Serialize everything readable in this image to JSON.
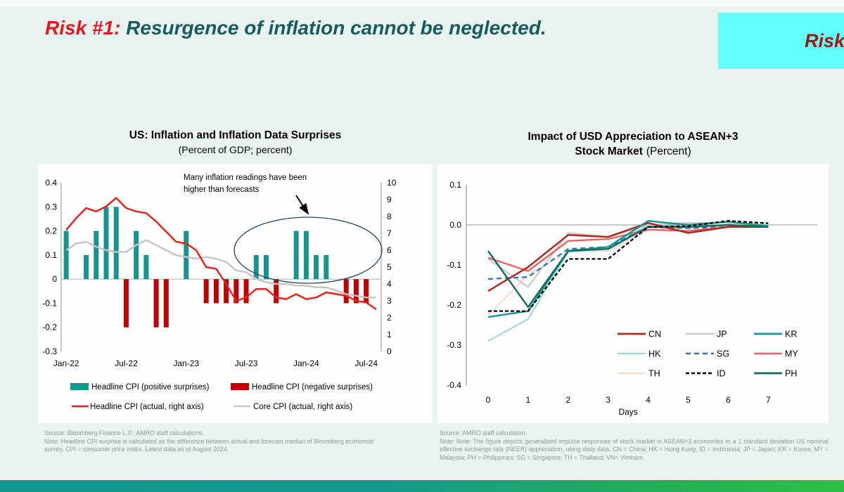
{
  "header": {
    "title_prefix": "Risk #1:",
    "title_rest": " Resurgence of inflation cannot be neglected.",
    "corner_label": "Risk"
  },
  "colors": {
    "background": "#e9f3f0",
    "title_red": "#e8171f",
    "title_teal": "#175a60",
    "corner_bg": "#63ffff",
    "corner_text": "#aa1414",
    "footer_teal": "#15988f",
    "footer_green": "#2eb44a"
  },
  "chart_data": [
    {
      "type": "bar",
      "subtype": "combo_bar_line",
      "title": "US: Inflation and Inflation Data Surprises",
      "subtitle": "(Percent of GDP; percent)",
      "x_months": [
        "Jan-22",
        "Feb-22",
        "Mar-22",
        "Apr-22",
        "May-22",
        "Jun-22",
        "Jul-22",
        "Aug-22",
        "Sep-22",
        "Oct-22",
        "Nov-22",
        "Dec-22",
        "Jan-23",
        "Feb-23",
        "Mar-23",
        "Apr-23",
        "May-23",
        "Jun-23",
        "Jul-23",
        "Aug-23",
        "Sep-23",
        "Oct-23",
        "Nov-23",
        "Dec-23",
        "Jan-24",
        "Feb-24",
        "Mar-24",
        "Apr-24",
        "May-24",
        "Jun-24",
        "Jul-24",
        "Aug-24"
      ],
      "x_tick_labels": [
        "Jan-22",
        "Jul-22",
        "Jan-23",
        "Jul-23",
        "Jan-24",
        "Jul-24"
      ],
      "x_tick_month_index": [
        0,
        6,
        12,
        18,
        24,
        30
      ],
      "left_axis": {
        "min": -0.3,
        "max": 0.4,
        "step": 0.1
      },
      "right_axis": {
        "min": 0,
        "max": 10,
        "step": 1
      },
      "bars": {
        "name_positive": "Headline CPI (positive surprises)",
        "color_positive": "#17948e",
        "name_negative": "Headline CPI (negative surprises)",
        "color_negative": "#c00000",
        "values": [
          0.2,
          0,
          0.1,
          0.2,
          0.3,
          0.3,
          -0.2,
          0.2,
          0.1,
          -0.2,
          -0.2,
          0,
          0.2,
          0,
          -0.1,
          -0.1,
          -0.1,
          -0.1,
          -0.1,
          0.1,
          0.1,
          -0.1,
          0,
          0.2,
          0.2,
          0.1,
          0.1,
          0,
          -0.1,
          -0.1,
          -0.1,
          0
        ]
      },
      "lines": [
        {
          "name": "Headline CPI (actual, right axis)",
          "color": "#e6231e",
          "values": [
            7.2,
            7.9,
            8.5,
            8.3,
            8.6,
            9.1,
            8.5,
            8.3,
            8.2,
            7.7,
            7.1,
            6.5,
            6.4,
            6.0,
            5.0,
            4.9,
            4.0,
            3.0,
            3.2,
            3.7,
            3.7,
            3.2,
            3.1,
            3.4,
            3.1,
            3.2,
            3.5,
            3.4,
            3.3,
            3.0,
            2.9,
            2.5
          ]
        },
        {
          "name": "Core CPI (actual, right axis)",
          "color": "#c5c5c5",
          "values": [
            6.0,
            6.4,
            6.5,
            6.2,
            6.0,
            5.9,
            5.9,
            6.3,
            6.6,
            6.3,
            6.0,
            5.7,
            5.6,
            5.5,
            5.6,
            5.5,
            5.3,
            4.8,
            4.7,
            4.3,
            4.1,
            4.0,
            4.0,
            3.9,
            3.9,
            3.8,
            3.8,
            3.6,
            3.4,
            3.3,
            3.2,
            3.2
          ]
        }
      ],
      "annotation": {
        "line1": "Many inflation readings have been",
        "line2": "higher than forecasts"
      },
      "source": "Source: Bloomberg Finance L.P.; AMRO staff calculations.",
      "note": "Note: Headline CPI surprise is calculated as the difference between actual and forecast median of Bloomberg economist survey. CPI = consumer price index. Latest data as of August 2024."
    },
    {
      "type": "line",
      "title_line1": "Impact of USD Appreciation to ASEAN+3",
      "title_line2_bold": "Stock Market",
      "title_line2_normal": "(Percent)",
      "x": [
        0,
        1,
        2,
        3,
        4,
        5,
        6,
        7
      ],
      "xlabel": "Days",
      "ylim": [
        -0.4,
        0.1
      ],
      "ytick_step": 0.1,
      "grid": "zero-line-only",
      "series": [
        {
          "name": "CN",
          "color": "#b02a21",
          "dash": null,
          "width": 2.5,
          "values": [
            -0.165,
            -0.105,
            -0.025,
            -0.03,
            0.005,
            -0.02,
            -0.005,
            -0.005
          ]
        },
        {
          "name": "JP",
          "color": "#c9c9c9",
          "dash": null,
          "width": 2.2,
          "values": [
            -0.085,
            -0.155,
            -0.02,
            -0.03,
            0.0,
            0.005,
            0.005,
            0.0
          ]
        },
        {
          "name": "KR",
          "color": "#15968f",
          "dash": null,
          "width": 2.4,
          "values": [
            -0.23,
            -0.215,
            -0.065,
            -0.055,
            0.01,
            0.0,
            0.008,
            -0.003
          ]
        },
        {
          "name": "HK",
          "color": "#9cdbe0",
          "dash": null,
          "width": 2.2,
          "values": [
            -0.29,
            -0.235,
            -0.068,
            -0.055,
            0.0,
            -0.005,
            0.0,
            -0.005
          ]
        },
        {
          "name": "SG",
          "color": "#2e75b6",
          "dash": "7,5",
          "width": 2.3,
          "values": [
            -0.135,
            -0.13,
            -0.06,
            -0.055,
            -0.005,
            -0.008,
            -0.005,
            -0.005
          ]
        },
        {
          "name": "MY",
          "color": "#ec5f5f",
          "dash": null,
          "width": 2.3,
          "values": [
            -0.082,
            -0.115,
            -0.04,
            -0.035,
            -0.012,
            -0.015,
            -0.005,
            -0.005
          ]
        },
        {
          "name": "TH",
          "color": "#f6dcd0",
          "dash": null,
          "width": 2.2,
          "values": [
            -0.225,
            -0.125,
            -0.067,
            -0.065,
            -0.012,
            -0.008,
            -0.002,
            -0.005
          ]
        },
        {
          "name": "ID",
          "color": "#000000",
          "dash": "5,3",
          "width": 2.3,
          "values": [
            -0.215,
            -0.215,
            -0.085,
            -0.085,
            -0.005,
            -0.003,
            0.01,
            0.004
          ]
        },
        {
          "name": "PH",
          "color": "#0e6a5f",
          "dash": null,
          "width": 2.4,
          "values": [
            -0.065,
            -0.205,
            -0.065,
            -0.06,
            -0.005,
            -0.005,
            0.0,
            -0.005
          ]
        }
      ],
      "draw_order": [
        "TH",
        "HK",
        "JP",
        "SG",
        "MY",
        "CN",
        "KR",
        "PH",
        "ID"
      ],
      "legend_rows": [
        [
          "CN",
          "JP",
          "KR"
        ],
        [
          "HK",
          "SG",
          "MY"
        ],
        [
          "TH",
          "ID",
          "PH"
        ]
      ],
      "legend_position": "inside-bottom-right",
      "source": "Source: AMRO staff calculation.",
      "note": "Note: Note: The figure depicts generalized impulse responses of stock market in ASEAN+3 economies to a 1 standard deviation US nominal effective exchange rate (NEER) appreciation, using daily data. CN = China; HK = Hong Kong; ID = Indonesia; JP = Japan; KR = Korea; MY = Malaysia; PH = Philippines; SG = Singapore; TH = Thailand; VN= Vietnam."
    }
  ]
}
